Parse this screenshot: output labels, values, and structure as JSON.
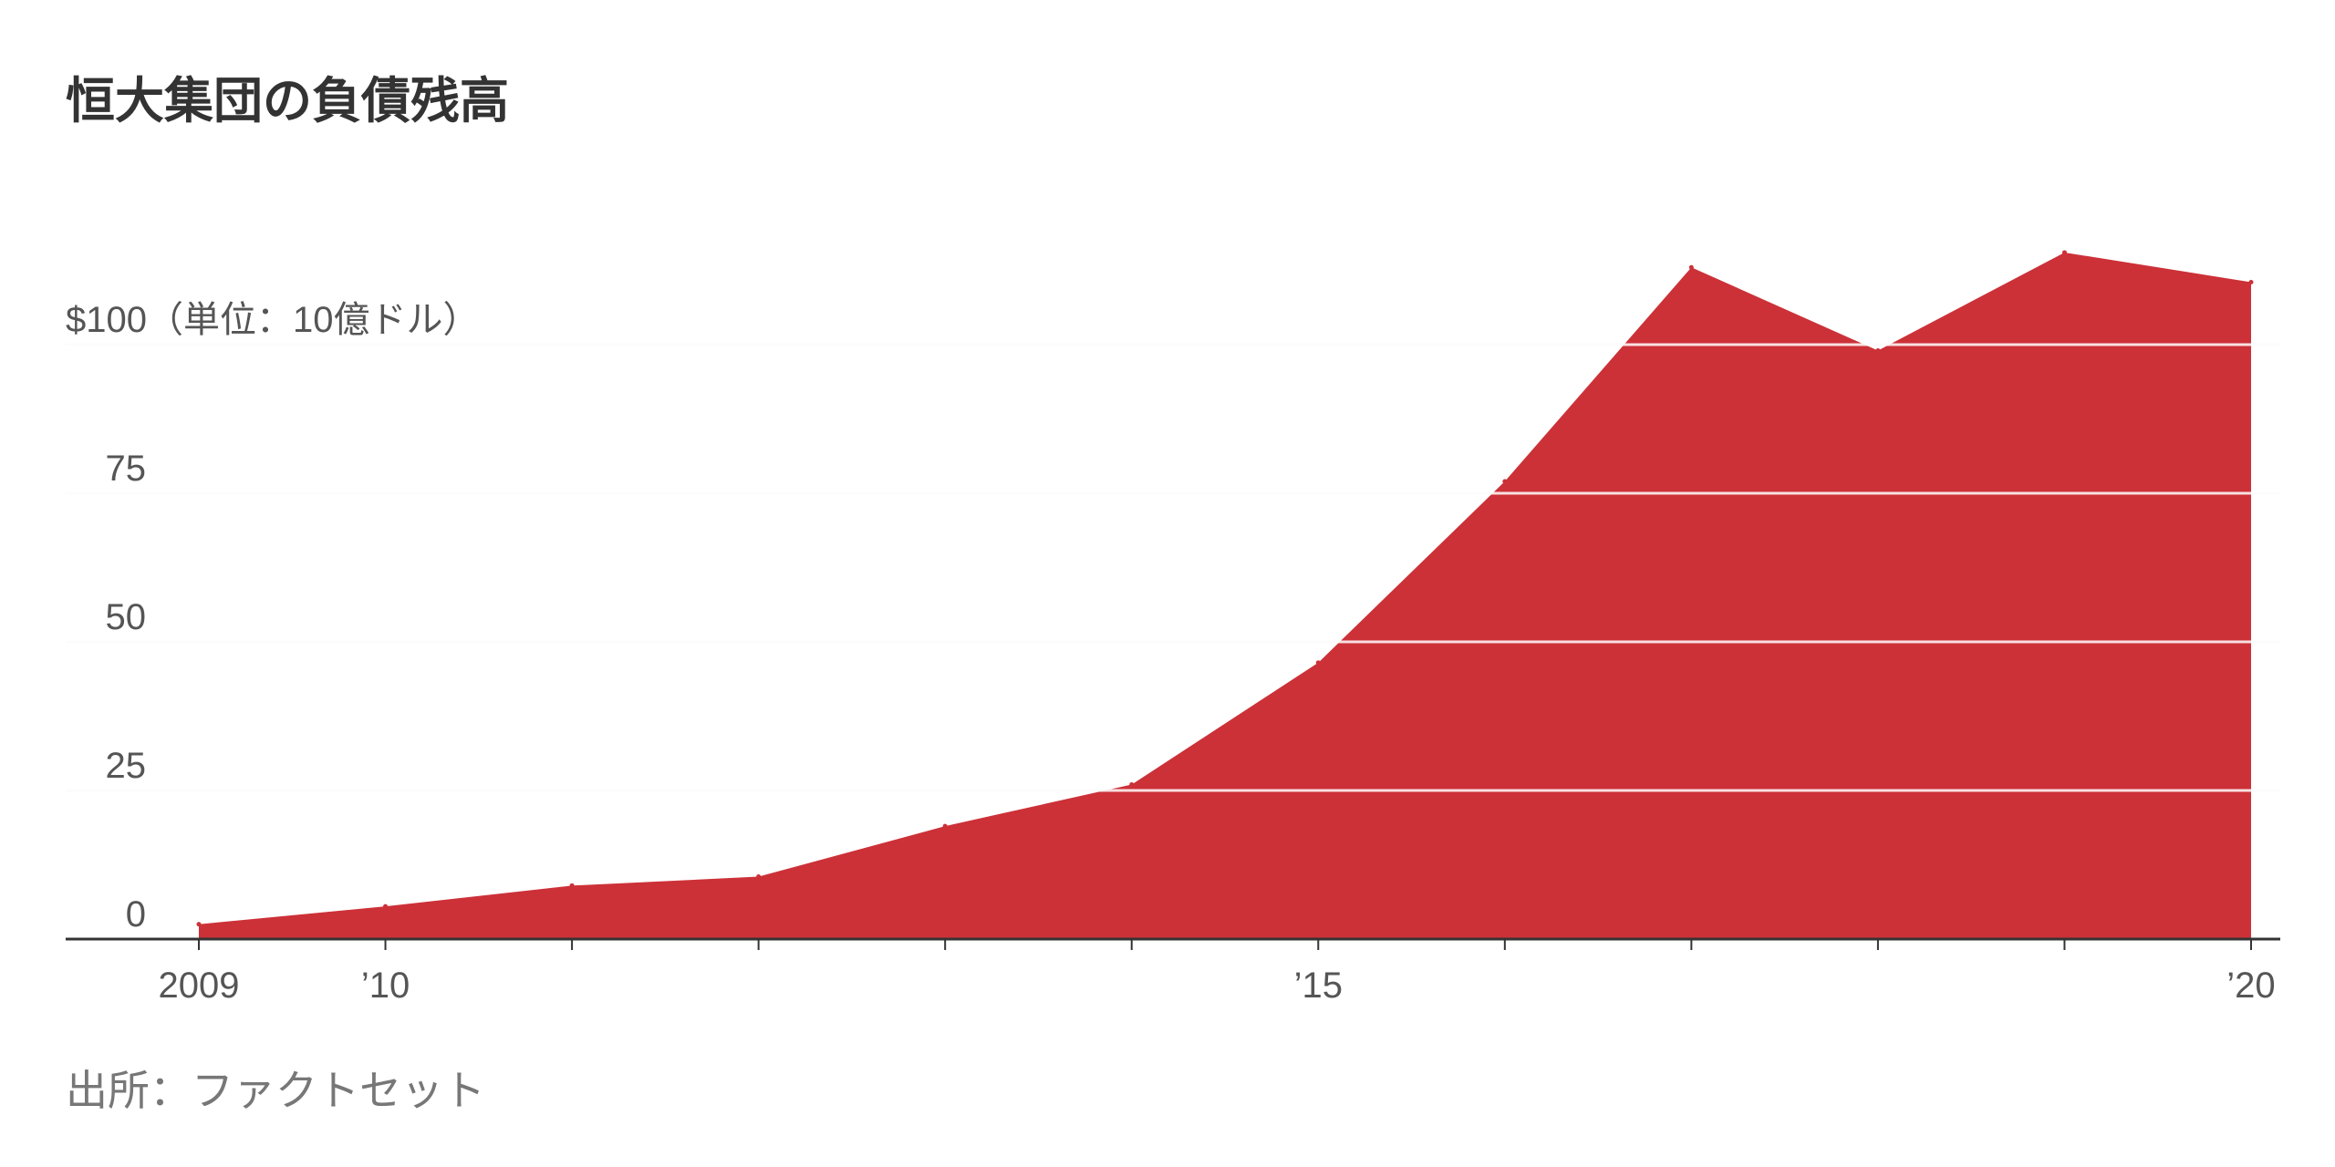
{
  "title": "恒大集団の負債残高",
  "source": "出所：ファクトセット",
  "colors": {
    "area": "#cc3138",
    "grid": "#e6e6e6",
    "axis": "#333333",
    "text": "#555555"
  },
  "chart_data": {
    "type": "area",
    "title": "恒大集団の負債残高",
    "ylabel": "",
    "xlabel": "",
    "x": [
      2009,
      2010,
      2011,
      2012,
      2013,
      2014,
      2015,
      2016,
      2017,
      2018,
      2019,
      2020
    ],
    "values": [
      2.5,
      5.5,
      9,
      10.5,
      19,
      26,
      46.5,
      77,
      113,
      99,
      115.5,
      110.5
    ],
    "xlim": [
      2009,
      2020
    ],
    "ylim": [
      0,
      125
    ],
    "y_ticks": [
      {
        "value": 0,
        "label": "0"
      },
      {
        "value": 25,
        "label": "25"
      },
      {
        "value": 50,
        "label": "50"
      },
      {
        "value": 75,
        "label": "75"
      },
      {
        "value": 100,
        "label": "$100（単位：10億ドル）"
      }
    ],
    "x_ticks": [
      2009,
      2010,
      2011,
      2012,
      2013,
      2014,
      2015,
      2016,
      2017,
      2018,
      2019,
      2020
    ],
    "x_tick_labels": [
      {
        "value": 2009,
        "label": "2009"
      },
      {
        "value": 2010,
        "label": "’10"
      },
      {
        "value": 2015,
        "label": "’15"
      },
      {
        "value": 2020,
        "label": "’20"
      }
    ],
    "grid": true,
    "legend": "none"
  }
}
